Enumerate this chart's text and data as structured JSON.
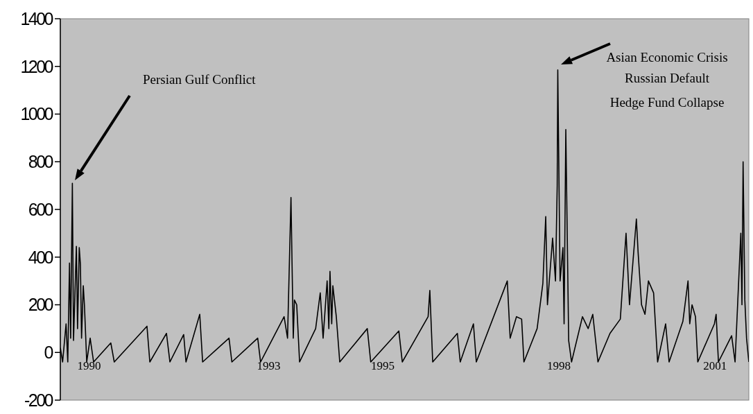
{
  "chart_data": {
    "type": "line",
    "xlim": [
      1989.5,
      2001.5
    ],
    "ylim": [
      -200,
      1400
    ],
    "yticks": [
      -200,
      0,
      200,
      400,
      600,
      800,
      1000,
      1200,
      1400
    ],
    "xticks": [
      {
        "value": 1990.0,
        "label": "1990"
      },
      {
        "value": 1993.13,
        "label": "1993"
      },
      {
        "value": 1995.12,
        "label": "1995"
      },
      {
        "value": 1998.19,
        "label": "1998"
      },
      {
        "value": 2000.91,
        "label": "2001"
      }
    ],
    "grid": false,
    "marker": "none",
    "line_style": "solid",
    "annotations": [
      "Persian Gulf Conflict",
      "Asian Economic Crisis",
      "Russian Default",
      "Hedge Fund Collapse"
    ],
    "series": [
      {
        "color": "#000000",
        "x": [
          1989.5,
          1989.54,
          1989.6,
          1989.63,
          1989.66,
          1989.68,
          1989.71,
          1989.73,
          1989.78,
          1989.8,
          1989.83,
          1989.85,
          1989.87,
          1989.9,
          1989.92,
          1989.96,
          1990.02,
          1990.08,
          1990.38,
          1990.44,
          1991.01,
          1991.06,
          1991.35,
          1991.41,
          1991.65,
          1991.69,
          1991.93,
          1991.98,
          1992.44,
          1992.49,
          1992.94,
          1992.99,
          1993.4,
          1993.46,
          1993.52,
          1993.56,
          1993.58,
          1993.62,
          1993.67,
          1993.95,
          1994.03,
          1994.08,
          1994.15,
          1994.18,
          1994.2,
          1994.23,
          1994.25,
          1994.31,
          1994.37,
          1994.85,
          1994.91,
          1995.4,
          1995.46,
          1995.91,
          1995.94,
          1995.99,
          1996.42,
          1996.47,
          1996.7,
          1996.75,
          1997.29,
          1997.34,
          1997.45,
          1997.54,
          1997.58,
          1997.81,
          1997.91,
          1997.96,
          1997.99,
          1998.08,
          1998.13,
          1998.16,
          1998.17,
          1998.21,
          1998.26,
          1998.28,
          1998.31,
          1998.36,
          1998.41,
          1998.6,
          1998.7,
          1998.78,
          1998.87,
          1999.08,
          1999.26,
          1999.36,
          1999.42,
          1999.48,
          1999.54,
          1999.57,
          1999.63,
          1999.69,
          1999.75,
          1999.84,
          1999.91,
          2000.05,
          2000.11,
          2000.35,
          2000.44,
          2000.47,
          2000.51,
          2000.57,
          2000.61,
          2000.9,
          2000.93,
          2000.97,
          2001.2,
          2001.26,
          2001.36,
          2001.38,
          2001.4,
          2001.43,
          2001.46,
          2001.5
        ],
        "values": [
          20,
          -40,
          120,
          -40,
          375,
          60,
          710,
          50,
          445,
          100,
          440,
          370,
          60,
          280,
          200,
          -40,
          60,
          -40,
          40,
          -40,
          110,
          -40,
          80,
          -40,
          75,
          -40,
          160,
          -40,
          60,
          -40,
          60,
          -40,
          150,
          60,
          650,
          60,
          220,
          200,
          -40,
          100,
          250,
          60,
          300,
          100,
          340,
          120,
          280,
          150,
          -40,
          100,
          -40,
          90,
          -40,
          150,
          260,
          -40,
          80,
          -40,
          120,
          -40,
          300,
          60,
          150,
          140,
          -40,
          100,
          290,
          570,
          200,
          480,
          300,
          700,
          1185,
          300,
          440,
          120,
          935,
          50,
          -40,
          150,
          100,
          160,
          -40,
          80,
          140,
          500,
          200,
          380,
          560,
          420,
          200,
          160,
          300,
          250,
          -40,
          120,
          -40,
          130,
          300,
          120,
          200,
          150,
          -40,
          120,
          160,
          -40,
          70,
          -40,
          500,
          200,
          800,
          220,
          60,
          -40
        ]
      }
    ]
  }
}
